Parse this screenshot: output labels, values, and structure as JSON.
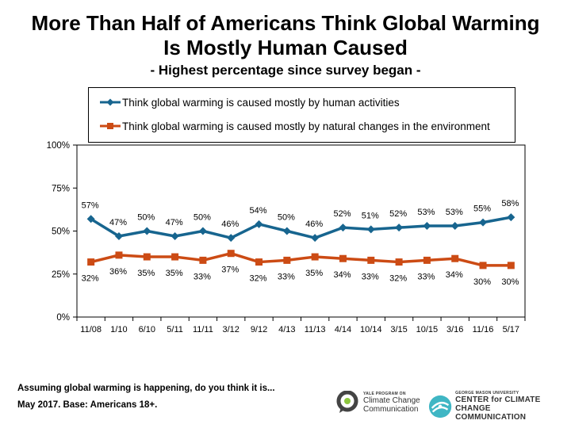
{
  "header": {
    "title_line1": "More Than Half of Americans Think Global Warming",
    "title_line2": "Is Mostly Human Caused",
    "subtitle": "- Highest percentage since survey began -"
  },
  "footer": {
    "question": "Assuming global warming is happening, do you think it is...",
    "source": "May 2017. Base: Americans 18+."
  },
  "logos": {
    "yale": {
      "small": "YALE PROGRAM ON",
      "line1": "Climate Change",
      "line2": "Communication",
      "color": "#444444"
    },
    "gmu": {
      "small": "GEORGE MASON UNIVERSITY",
      "line1": "CENTER for CLIMATE CHANGE",
      "line2": "COMMUNICATION",
      "color": "#3fb6c4"
    }
  },
  "chart_data": {
    "type": "line",
    "categories": [
      "11/08",
      "1/10",
      "6/10",
      "5/11",
      "11/11",
      "3/12",
      "9/12",
      "4/13",
      "11/13",
      "4/14",
      "10/14",
      "3/15",
      "10/15",
      "3/16",
      "11/16",
      "5/17"
    ],
    "y_ticks": [
      "0%",
      "25%",
      "50%",
      "75%",
      "100%"
    ],
    "ylim": [
      0,
      100
    ],
    "grid": false,
    "legend_placement": "top",
    "series": [
      {
        "name": "Think global warming is caused mostly by human activities",
        "color": "#17658f",
        "marker": "diamond",
        "label_position": "above",
        "values": [
          57,
          47,
          50,
          47,
          50,
          46,
          54,
          50,
          46,
          52,
          51,
          52,
          53,
          53,
          55,
          58
        ],
        "labels": [
          "57%",
          "47%",
          "50%",
          "47%",
          "50%",
          "46%",
          "54%",
          "50%",
          "46%",
          "52%",
          "51%",
          "52%",
          "53%",
          "53%",
          "55%",
          "58%"
        ]
      },
      {
        "name": "Think global warming is caused mostly by natural changes in the environment",
        "color": "#cc4b14",
        "marker": "square",
        "label_position": "below",
        "values": [
          32,
          36,
          35,
          35,
          33,
          37,
          32,
          33,
          35,
          34,
          33,
          32,
          33,
          34,
          30,
          30
        ],
        "labels": [
          "32%",
          "36%",
          "35%",
          "35%",
          "33%",
          "37%",
          "32%",
          "33%",
          "35%",
          "34%",
          "33%",
          "32%",
          "33%",
          "34%",
          "30%",
          "30%"
        ]
      }
    ]
  }
}
